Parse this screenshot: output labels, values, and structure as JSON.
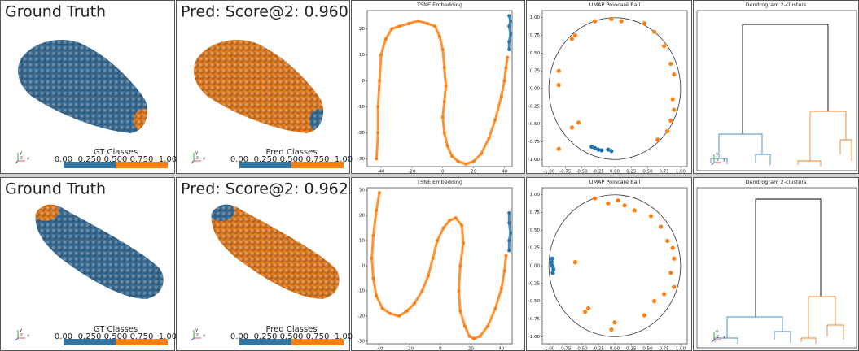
{
  "rows": [
    {
      "ground_truth": {
        "title": "Ground Truth",
        "colorbar_label": "GT Classes",
        "colorbar_ticks": [
          "0.00",
          "0.250",
          "0.500",
          "0.750",
          "1.00"
        ],
        "triad": [
          "y",
          "z",
          "x"
        ]
      },
      "prediction": {
        "title": "Pred: Score@2: 0.960",
        "colorbar_label": "Pred Classes",
        "colorbar_ticks": [
          "0.00",
          "0.250",
          "0.500",
          "0.750",
          "1.00"
        ],
        "triad": [
          "y",
          "z",
          "x"
        ]
      },
      "tsne": {
        "type": "scatter",
        "title": "TSNE Embedding",
        "markers_joined": true,
        "xlim": [
          -49,
          45
        ],
        "ylim": [
          -33,
          27
        ],
        "xticks": [
          -40,
          -20,
          0,
          20,
          40
        ],
        "yticks": [
          -30,
          -20,
          -10,
          0,
          10,
          20
        ],
        "series": [
          {
            "color": "#ff7f0e",
            "x": [
              -43,
              -42,
              -42,
              -41,
              -40,
              -37,
              -33,
              -28,
              -22,
              -16,
              -10,
              -5,
              -2,
              0,
              1,
              2,
              1,
              0,
              1,
              3,
              6,
              10,
              15,
              20,
              25,
              30,
              34,
              38,
              40,
              41,
              42
            ],
            "y": [
              -30,
              -20,
              -10,
              0,
              10,
              16,
              20,
              21,
              22,
              23,
              22,
              21,
              17,
              12,
              5,
              -2,
              -8,
              -14,
              -20,
              -25,
              -29,
              -31,
              -32,
              -31,
              -28,
              -22,
              -15,
              -6,
              0,
              5,
              9
            ]
          },
          {
            "color": "#1f77b4",
            "x": [
              43,
              43,
              44,
              43,
              44,
              43
            ],
            "y": [
              12,
              15,
              18,
              21,
              23,
              25
            ]
          }
        ]
      },
      "umap": {
        "type": "scatter",
        "title": "UMAP Poincaré Ball",
        "unit_ball": true,
        "xlim": [
          -1.1,
          1.1
        ],
        "ylim": [
          -1.1,
          1.1
        ],
        "xticks": [
          {
            "value": -1,
            "label": "-1.00"
          },
          {
            "value": -0.75,
            "label": "-0.75"
          },
          {
            "value": -0.5,
            "label": "-0.50"
          },
          {
            "value": -0.25,
            "label": "-0.25"
          },
          {
            "value": 0,
            "label": "0.00"
          },
          {
            "value": 0.25,
            "label": "0.25"
          },
          {
            "value": 0.5,
            "label": "0.50"
          },
          {
            "value": 0.75,
            "label": "0.75"
          },
          {
            "value": 1,
            "label": "1.00"
          }
        ],
        "yticks": [
          {
            "value": -1,
            "label": "-1.00"
          },
          {
            "value": -0.75,
            "label": "-0.75"
          },
          {
            "value": -0.5,
            "label": "-0.50"
          },
          {
            "value": -0.25,
            "label": "-0.25"
          },
          {
            "value": 0,
            "label": "0.00"
          },
          {
            "value": 0.25,
            "label": "0.25"
          },
          {
            "value": 0.5,
            "label": "0.50"
          },
          {
            "value": 0.75,
            "label": "0.75"
          },
          {
            "value": 1,
            "label": "1.00"
          }
        ],
        "series": [
          {
            "color": "#ff7f0e",
            "x": [
              -0.65,
              -0.6,
              -0.3,
              -0.05,
              0.1,
              0.45,
              0.6,
              0.75,
              0.85,
              0.9,
              0.88,
              0.9,
              0.85,
              0.8,
              0.65,
              -0.85,
              -0.85,
              -0.55,
              -0.65,
              -0.85
            ],
            "y": [
              0.7,
              0.75,
              0.95,
              0.98,
              0.95,
              0.92,
              0.8,
              0.6,
              0.35,
              0.2,
              -0.15,
              -0.3,
              -0.45,
              -0.6,
              -0.72,
              0.25,
              0.05,
              -0.48,
              -0.55,
              -0.85
            ]
          },
          {
            "color": "#1f77b4",
            "x": [
              -0.35,
              -0.3,
              -0.25,
              -0.2,
              -0.1,
              -0.05
            ],
            "y": [
              -0.82,
              -0.84,
              -0.86,
              -0.87,
              -0.86,
              -0.88
            ]
          }
        ]
      },
      "dendrogram": {
        "title": "Dendrogram 2-clusters",
        "triad": [
          "y",
          "z",
          "x"
        ]
      }
    },
    {
      "ground_truth": {
        "title": "Ground Truth",
        "colorbar_label": "GT Classes",
        "colorbar_ticks": [
          "0.00",
          "0.250",
          "0.500",
          "0.750",
          "1.00"
        ],
        "triad": [
          "y",
          "z",
          "x"
        ]
      },
      "prediction": {
        "title": "Pred: Score@2: 0.962",
        "colorbar_label": "Pred Classes",
        "colorbar_ticks": [
          "0.00",
          "0.250",
          "0.500",
          "0.750",
          "1.00"
        ],
        "triad": [
          "y",
          "z",
          "x"
        ]
      },
      "tsne": {
        "type": "scatter",
        "title": "TSNE Embedding",
        "markers_joined": true,
        "xlim": [
          -48,
          47
        ],
        "ylim": [
          -31,
          31
        ],
        "xticks": [
          -40,
          -20,
          0,
          20,
          40
        ],
        "yticks": [
          -30,
          -20,
          -10,
          0,
          10,
          20,
          30
        ],
        "series": [
          {
            "color": "#ff7f0e",
            "x": [
              -40,
              -42,
              -44,
              -45,
              -44,
              -42,
              -38,
              -33,
              -27,
              -22,
              -17,
              -12,
              -8,
              -5,
              -2,
              2,
              6,
              10,
              14,
              15,
              13,
              12,
              13,
              16,
              19,
              22,
              26,
              31,
              36,
              40,
              42,
              43
            ],
            "y": [
              29,
              22,
              12,
              3,
              -5,
              -12,
              -17,
              -19,
              -20,
              -18,
              -15,
              -10,
              -4,
              3,
              10,
              15,
              18,
              19,
              16,
              9,
              0,
              -10,
              -18,
              -24,
              -28,
              -29,
              -28,
              -24,
              -17,
              -9,
              -2,
              4
            ]
          },
          {
            "color": "#1f77b4",
            "x": [
              45,
              45,
              46,
              45,
              45
            ],
            "y": [
              6,
              10,
              13,
              17,
              21
            ]
          }
        ]
      },
      "umap": {
        "type": "scatter",
        "title": "UMAP Poincaré Ball",
        "unit_ball": true,
        "xlim": [
          -1.1,
          1.1
        ],
        "ylim": [
          -1.1,
          1.1
        ],
        "xticks": [
          {
            "value": -1,
            "label": "-1.00"
          },
          {
            "value": -0.75,
            "label": "-0.75"
          },
          {
            "value": -0.5,
            "label": "-0.50"
          },
          {
            "value": -0.25,
            "label": "-0.25"
          },
          {
            "value": 0,
            "label": "0.00"
          },
          {
            "value": 0.25,
            "label": "0.25"
          },
          {
            "value": 0.5,
            "label": "0.50"
          },
          {
            "value": 0.75,
            "label": "0.75"
          },
          {
            "value": 1,
            "label": "1.00"
          }
        ],
        "yticks": [
          {
            "value": -1,
            "label": "-1.00"
          },
          {
            "value": -0.75,
            "label": "-0.75"
          },
          {
            "value": -0.5,
            "label": "-0.50"
          },
          {
            "value": -0.25,
            "label": "-0.25"
          },
          {
            "value": 0,
            "label": "0.00"
          },
          {
            "value": 0.25,
            "label": "0.25"
          },
          {
            "value": 0.5,
            "label": "0.50"
          },
          {
            "value": 0.75,
            "label": "0.75"
          },
          {
            "value": 1,
            "label": "1.00"
          }
        ],
        "series": [
          {
            "color": "#ff7f0e",
            "x": [
              -0.3,
              -0.1,
              0.05,
              0.15,
              0.3,
              0.55,
              0.7,
              0.8,
              0.88,
              0.9,
              0.85,
              0.75,
              0.6,
              0.45,
              0.0,
              -0.05,
              -0.4,
              -0.45,
              -0.6,
              0.9
            ],
            "y": [
              0.95,
              0.88,
              0.92,
              0.85,
              0.78,
              0.7,
              0.55,
              0.35,
              0.25,
              0.1,
              -0.1,
              -0.4,
              -0.5,
              -0.7,
              -0.8,
              -0.9,
              -0.6,
              -0.65,
              0.05,
              -0.3
            ]
          },
          {
            "color": "#1f77b4",
            "x": [
              -0.95,
              -0.96,
              -0.95,
              -0.93,
              -0.94
            ],
            "y": [
              0.1,
              0.05,
              0,
              -0.05,
              -0.1
            ]
          }
        ]
      },
      "dendrogram": {
        "title": "Dendrogram 2-clusters",
        "triad": [
          "y",
          "z",
          "x"
        ]
      }
    }
  ]
}
